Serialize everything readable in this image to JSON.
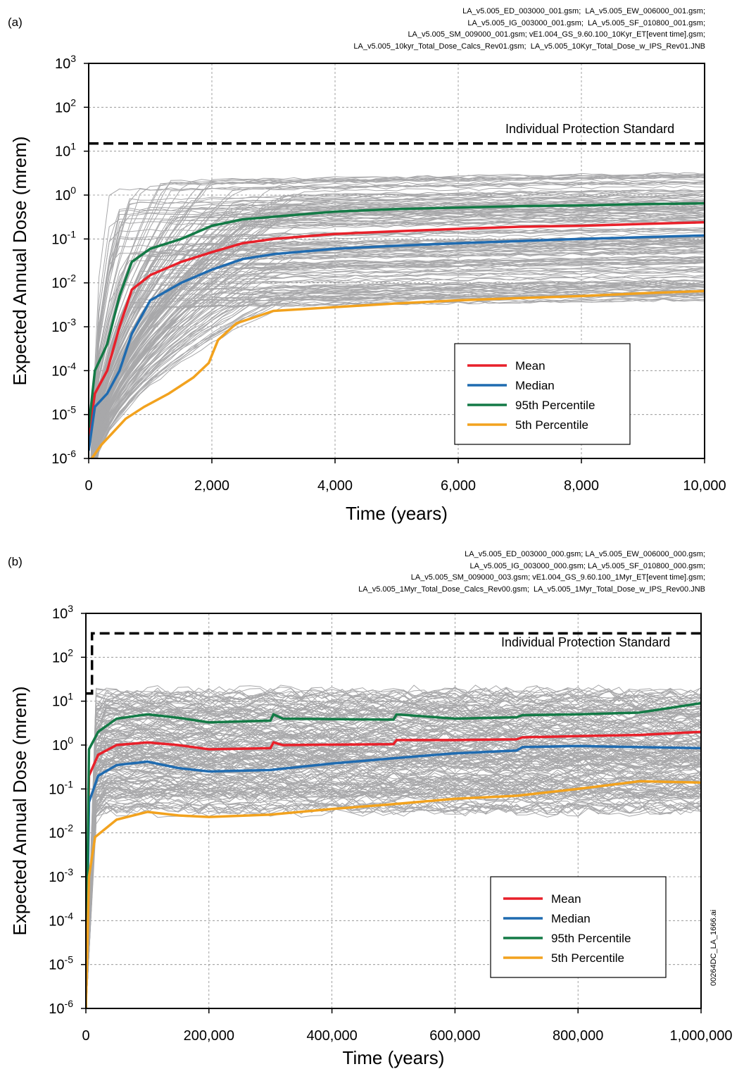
{
  "panels": [
    {
      "label": "(a)",
      "files": [
        "LA_v5.005_ED_003000_001.gsm;  LA_v5.005_EW_006000_001.gsm;",
        "LA_v5.005_IG_003000_001.gsm;  LA_v5.005_SF_010800_001.gsm;",
        "LA_v5.005_SM_009000_001.gsm; vE1.004_GS_9.60.100_10Kyr_ET[event time].gsm;",
        "LA_v5.005_10kyr_Total_Dose_Calcs_Rev01.gsm;  LA_v5.005_10Kyr_Total_Dose_w_IPS_Rev01.JNB"
      ]
    },
    {
      "label": "(b)",
      "files": [
        "LA_v5.005_ED_003000_000.gsm; LA_v5.005_EW_006000_000.gsm;",
        "LA_v5.005_IG_003000_000.gsm; LA_v5.005_SF_010800_000.gsm;",
        "LA_v5.005_SM_009000_003.gsm; vE1.004_GS_9.60.100_1Myr_ET[event time].gsm;",
        "LA_v5.005_1Myr_Total_Dose_Calcs_Rev00.gsm;  LA_v5.005_1Myr_Total_Dose_w_IPS_Rev00.JNB"
      ]
    }
  ],
  "side_label": "00264DC_LA_1666.ai",
  "colors": {
    "mean": "#e8202a",
    "median": "#1f6bb0",
    "p95": "#137a46",
    "p5": "#f2a21e",
    "realizations": "#a8a8aa",
    "grid": "#8a8a8a"
  },
  "chart_data": [
    {
      "type": "line",
      "xlabel": "Time (years)",
      "ylabel": "Expected Annual Dose (mrem)",
      "xlim": [
        0,
        10000
      ],
      "ylim": [
        1e-06,
        1000
      ],
      "yscale": "log",
      "grid": true,
      "legend_position": "lower-right",
      "x_ticks": [
        "0",
        "2,000",
        "4,000",
        "6,000",
        "8,000",
        "10,000"
      ],
      "x_tick_values": [
        0,
        2000,
        4000,
        6000,
        8000,
        10000
      ],
      "y_ticks": [
        {
          "base": "10",
          "exp": "-6",
          "value": 1e-06
        },
        {
          "base": "10",
          "exp": "-5",
          "value": 1e-05
        },
        {
          "base": "10",
          "exp": "-4",
          "value": 0.0001
        },
        {
          "base": "10",
          "exp": "-3",
          "value": 0.001
        },
        {
          "base": "10",
          "exp": "-2",
          "value": 0.01
        },
        {
          "base": "10",
          "exp": "-1",
          "value": 0.1
        },
        {
          "base": "10",
          "exp": "0",
          "value": 1
        },
        {
          "base": "10",
          "exp": "1",
          "value": 10
        },
        {
          "base": "10",
          "exp": "2",
          "value": 100
        },
        {
          "base": "10",
          "exp": "3",
          "value": 1000
        }
      ],
      "standard": {
        "label": "Individual Protection Standard",
        "points": [
          [
            0,
            15
          ],
          [
            10000,
            15
          ]
        ]
      },
      "series": [
        {
          "name": "Mean",
          "color": "#e8202a",
          "points": [
            [
              0,
              3e-06
            ],
            [
              100,
              3e-05
            ],
            [
              300,
              0.0001
            ],
            [
              500,
              0.001
            ],
            [
              700,
              0.007
            ],
            [
              1000,
              0.015
            ],
            [
              1500,
              0.03
            ],
            [
              2000,
              0.05
            ],
            [
              2500,
              0.08
            ],
            [
              3000,
              0.1
            ],
            [
              4000,
              0.13
            ],
            [
              5000,
              0.15
            ],
            [
              6000,
              0.17
            ],
            [
              7000,
              0.19
            ],
            [
              8000,
              0.2
            ],
            [
              9000,
              0.22
            ],
            [
              10000,
              0.24
            ]
          ]
        },
        {
          "name": "Median",
          "color": "#1f6bb0",
          "points": [
            [
              0,
              1.5e-06
            ],
            [
              100,
              1.5e-05
            ],
            [
              300,
              3e-05
            ],
            [
              500,
              0.0001
            ],
            [
              700,
              0.0007
            ],
            [
              1000,
              0.004
            ],
            [
              1500,
              0.01
            ],
            [
              2000,
              0.02
            ],
            [
              2500,
              0.035
            ],
            [
              3000,
              0.045
            ],
            [
              4000,
              0.06
            ],
            [
              5000,
              0.07
            ],
            [
              6000,
              0.08
            ],
            [
              7000,
              0.09
            ],
            [
              8000,
              0.1
            ],
            [
              9000,
              0.11
            ],
            [
              10000,
              0.12
            ]
          ]
        },
        {
          "name": "95th Percentile",
          "color": "#137a46",
          "points": [
            [
              0,
              5e-06
            ],
            [
              100,
              0.0001
            ],
            [
              300,
              0.0004
            ],
            [
              500,
              0.005
            ],
            [
              700,
              0.03
            ],
            [
              1000,
              0.06
            ],
            [
              1500,
              0.1
            ],
            [
              2000,
              0.2
            ],
            [
              2500,
              0.28
            ],
            [
              3000,
              0.32
            ],
            [
              4000,
              0.42
            ],
            [
              5000,
              0.48
            ],
            [
              6000,
              0.52
            ],
            [
              7000,
              0.56
            ],
            [
              8000,
              0.58
            ],
            [
              9000,
              0.62
            ],
            [
              10000,
              0.65
            ]
          ]
        },
        {
          "name": "5th Percentile",
          "color": "#f2a21e",
          "points": [
            [
              50,
              1e-06
            ],
            [
              200,
              2e-06
            ],
            [
              400,
              4e-06
            ],
            [
              600,
              8e-06
            ],
            [
              900,
              1.5e-05
            ],
            [
              1300,
              3e-05
            ],
            [
              1700,
              7e-05
            ],
            [
              1950,
              0.00015
            ],
            [
              2100,
              0.0005
            ],
            [
              2400,
              0.0012
            ],
            [
              3000,
              0.0023
            ],
            [
              4000,
              0.0028
            ],
            [
              5000,
              0.0034
            ],
            [
              6000,
              0.004
            ],
            [
              7000,
              0.0045
            ],
            [
              8000,
              0.005
            ],
            [
              9000,
              0.0058
            ],
            [
              10000,
              0.0065
            ]
          ]
        }
      ]
    },
    {
      "type": "line",
      "xlabel": "Time (years)",
      "ylabel": "Expected Annual Dose (mrem)",
      "xlim": [
        0,
        1000000
      ],
      "ylim": [
        1e-06,
        1000
      ],
      "yscale": "log",
      "grid": true,
      "legend_position": "lower-right",
      "x_ticks": [
        "0",
        "200,000",
        "400,000",
        "600,000",
        "800,000",
        "1,000,000"
      ],
      "x_tick_values": [
        0,
        200000,
        400000,
        600000,
        800000,
        1000000
      ],
      "y_ticks": [
        {
          "base": "10",
          "exp": "-6",
          "value": 1e-06
        },
        {
          "base": "10",
          "exp": "-5",
          "value": 1e-05
        },
        {
          "base": "10",
          "exp": "-4",
          "value": 0.0001
        },
        {
          "base": "10",
          "exp": "-3",
          "value": 0.001
        },
        {
          "base": "10",
          "exp": "-2",
          "value": 0.01
        },
        {
          "base": "10",
          "exp": "-1",
          "value": 0.1
        },
        {
          "base": "10",
          "exp": "0",
          "value": 1
        },
        {
          "base": "10",
          "exp": "1",
          "value": 10
        },
        {
          "base": "10",
          "exp": "2",
          "value": 100
        },
        {
          "base": "10",
          "exp": "3",
          "value": 1000
        }
      ],
      "standard": {
        "label": "Individual Protection Standard",
        "points": [
          [
            0,
            15
          ],
          [
            10000,
            15
          ],
          [
            10000,
            350
          ],
          [
            1000000,
            350
          ]
        ]
      },
      "series": [
        {
          "name": "Mean",
          "color": "#e8202a",
          "points": [
            [
              0,
              1e-06
            ],
            [
              5000,
              0.2
            ],
            [
              20000,
              0.6
            ],
            [
              50000,
              1.0
            ],
            [
              100000,
              1.15
            ],
            [
              150000,
              1.0
            ],
            [
              200000,
              0.8
            ],
            [
              300000,
              0.85
            ],
            [
              305000,
              1.15
            ],
            [
              320000,
              1.0
            ],
            [
              500000,
              1.05
            ],
            [
              505000,
              1.3
            ],
            [
              600000,
              1.3
            ],
            [
              700000,
              1.35
            ],
            [
              710000,
              1.5
            ],
            [
              800000,
              1.6
            ],
            [
              900000,
              1.7
            ],
            [
              1000000,
              2.0
            ]
          ]
        },
        {
          "name": "Median",
          "color": "#1f6bb0",
          "points": [
            [
              0,
              1e-06
            ],
            [
              5000,
              0.05
            ],
            [
              20000,
              0.2
            ],
            [
              50000,
              0.35
            ],
            [
              100000,
              0.42
            ],
            [
              150000,
              0.3
            ],
            [
              200000,
              0.25
            ],
            [
              300000,
              0.27
            ],
            [
              400000,
              0.38
            ],
            [
              500000,
              0.5
            ],
            [
              600000,
              0.65
            ],
            [
              700000,
              0.75
            ],
            [
              710000,
              0.9
            ],
            [
              800000,
              0.95
            ],
            [
              900000,
              0.9
            ],
            [
              1000000,
              0.85
            ]
          ]
        },
        {
          "name": "95th Percentile",
          "color": "#137a46",
          "points": [
            [
              0,
              1e-06
            ],
            [
              5000,
              0.8
            ],
            [
              20000,
              2.0
            ],
            [
              50000,
              4.0
            ],
            [
              100000,
              5.0
            ],
            [
              150000,
              4.2
            ],
            [
              200000,
              3.3
            ],
            [
              300000,
              3.6
            ],
            [
              305000,
              5.0
            ],
            [
              320000,
              4.0
            ],
            [
              500000,
              3.8
            ],
            [
              505000,
              5.0
            ],
            [
              600000,
              4.0
            ],
            [
              700000,
              4.3
            ],
            [
              710000,
              4.8
            ],
            [
              800000,
              5.0
            ],
            [
              900000,
              5.5
            ],
            [
              1000000,
              9.0
            ]
          ]
        },
        {
          "name": "5th Percentile",
          "color": "#f2a21e",
          "points": [
            [
              0,
              1e-06
            ],
            [
              5000,
              0.001
            ],
            [
              15000,
              0.008
            ],
            [
              50000,
              0.02
            ],
            [
              100000,
              0.03
            ],
            [
              150000,
              0.025
            ],
            [
              200000,
              0.023
            ],
            [
              300000,
              0.026
            ],
            [
              400000,
              0.035
            ],
            [
              500000,
              0.045
            ],
            [
              600000,
              0.06
            ],
            [
              700000,
              0.07
            ],
            [
              800000,
              0.1
            ],
            [
              900000,
              0.15
            ],
            [
              1000000,
              0.14
            ]
          ]
        }
      ]
    }
  ]
}
